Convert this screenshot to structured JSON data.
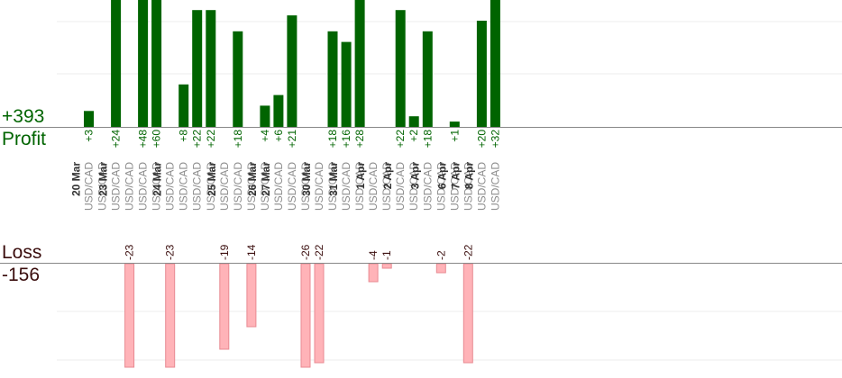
{
  "summary": {
    "profit_total": "+393",
    "profit_label": "Profit",
    "loss_label": "Loss",
    "loss_total": "-156"
  },
  "colors": {
    "profit_bar": "#006400",
    "loss_bar": "#ffb3b8",
    "loss_bar_stroke": "#e88a92",
    "profit_text": "#006400",
    "loss_text": "#3a0d0d",
    "date_text": "#333333",
    "pair_text": "#8c8c8c",
    "grid": "#eeeeee",
    "axis": "#888888"
  },
  "chart_data": {
    "type": "bar",
    "title": "",
    "xlabel": "",
    "ylabel": "",
    "grid": true,
    "profit_axis_range": [
      0,
      28
    ],
    "loss_axis_range": [
      -23,
      0
    ],
    "trades": [
      {
        "date": "20 Mar",
        "pair": "USD/CAD",
        "value": 3
      },
      {
        "date": "20 Mar",
        "pair": "USD/CAD",
        "value": 0
      },
      {
        "date": "23 Mar",
        "pair": "USD/CAD",
        "value": 24
      },
      {
        "date": "23 Mar",
        "pair": "USD/CAD",
        "value": -23
      },
      {
        "date": "23 Mar",
        "pair": "USD/CAD",
        "value": 48
      },
      {
        "date": "23 Mar",
        "pair": "USD/CAD",
        "value": 60
      },
      {
        "date": "24 Mar",
        "pair": "USD/CAD",
        "value": -23
      },
      {
        "date": "24 Mar",
        "pair": "USD/CAD",
        "value": 8
      },
      {
        "date": "24 Mar",
        "pair": "USD/CAD",
        "value": 22
      },
      {
        "date": "24 Mar",
        "pair": "USD/CAD",
        "value": 22
      },
      {
        "date": "25 Mar",
        "pair": "USD/CAD",
        "value": -19
      },
      {
        "date": "25 Mar",
        "pair": "USD/CAD",
        "value": 18
      },
      {
        "date": "25 Mar",
        "pair": "USD/CAD",
        "value": -14
      },
      {
        "date": "26 Mar",
        "pair": "USD/CAD",
        "value": 4
      },
      {
        "date": "27 Mar",
        "pair": "USD/CAD",
        "value": 6
      },
      {
        "date": "27 Mar",
        "pair": "USD/CAD",
        "value": 21
      },
      {
        "date": "27 Mar",
        "pair": "USD/CAD",
        "value": -26
      },
      {
        "date": "30 Mar",
        "pair": "USD/CAD",
        "value": -22
      },
      {
        "date": "30 Mar",
        "pair": "USD/CAD",
        "value": 18
      },
      {
        "date": "31 Mar",
        "pair": "USD/CAD",
        "value": 16
      },
      {
        "date": "31 Mar",
        "pair": "USD/CAD",
        "value": 28
      },
      {
        "date": "1 Apr",
        "pair": "USD/CAD",
        "value": -4
      },
      {
        "date": "1 Apr",
        "pair": "USD/CAD",
        "value": -1
      },
      {
        "date": "2 Apr",
        "pair": "USD/CAD",
        "value": 22
      },
      {
        "date": "2 Apr",
        "pair": "USD/CAD",
        "value": 2
      },
      {
        "date": "3 Apr",
        "pair": "USD/CAD",
        "value": 18
      },
      {
        "date": "3 Apr",
        "pair": "USD/CAD",
        "value": -2
      },
      {
        "date": "6 Apr",
        "pair": "USD/CAD",
        "value": 1
      },
      {
        "date": "7 Apr",
        "pair": "USD/CAD",
        "value": -22
      },
      {
        "date": "8 Apr",
        "pair": "USD/CAD",
        "value": 20
      },
      {
        "date": "8 Apr",
        "pair": "USD/CAD",
        "value": 32
      }
    ]
  }
}
